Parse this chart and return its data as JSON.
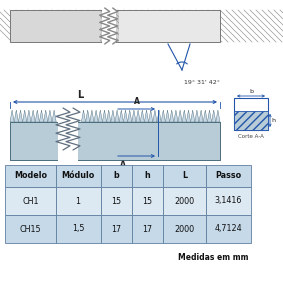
{
  "angle_label": "19° 31' 42°",
  "L_label": "L",
  "A_label": "A",
  "corte_label": "Corte A-A",
  "b_label": "b",
  "h_label": "h",
  "footer": "Medidas em mm",
  "table_headers": [
    "Modelo",
    "Módulo",
    "b",
    "h",
    "L",
    "Passo"
  ],
  "table_rows": [
    [
      "CH1",
      "1",
      "15",
      "15",
      "2000",
      "3,1416"
    ],
    [
      "CH15",
      "1,5",
      "17",
      "17",
      "2000",
      "4,7124"
    ]
  ],
  "header_bg": "#c5d9e8",
  "row_bg1": "#dce8f2",
  "row_bg2": "#c5d9e8",
  "table_border": "#6080a0",
  "arrow_color": "#2255aa",
  "bg_color": "#ffffff",
  "top_bar_facecolor": "#c8c8c8",
  "top_bar_hatch_color": "#888888",
  "rack_body_color": "#b8ccd8",
  "rack_tooth_color": "#d0dce4",
  "break_line_color": "#606060"
}
